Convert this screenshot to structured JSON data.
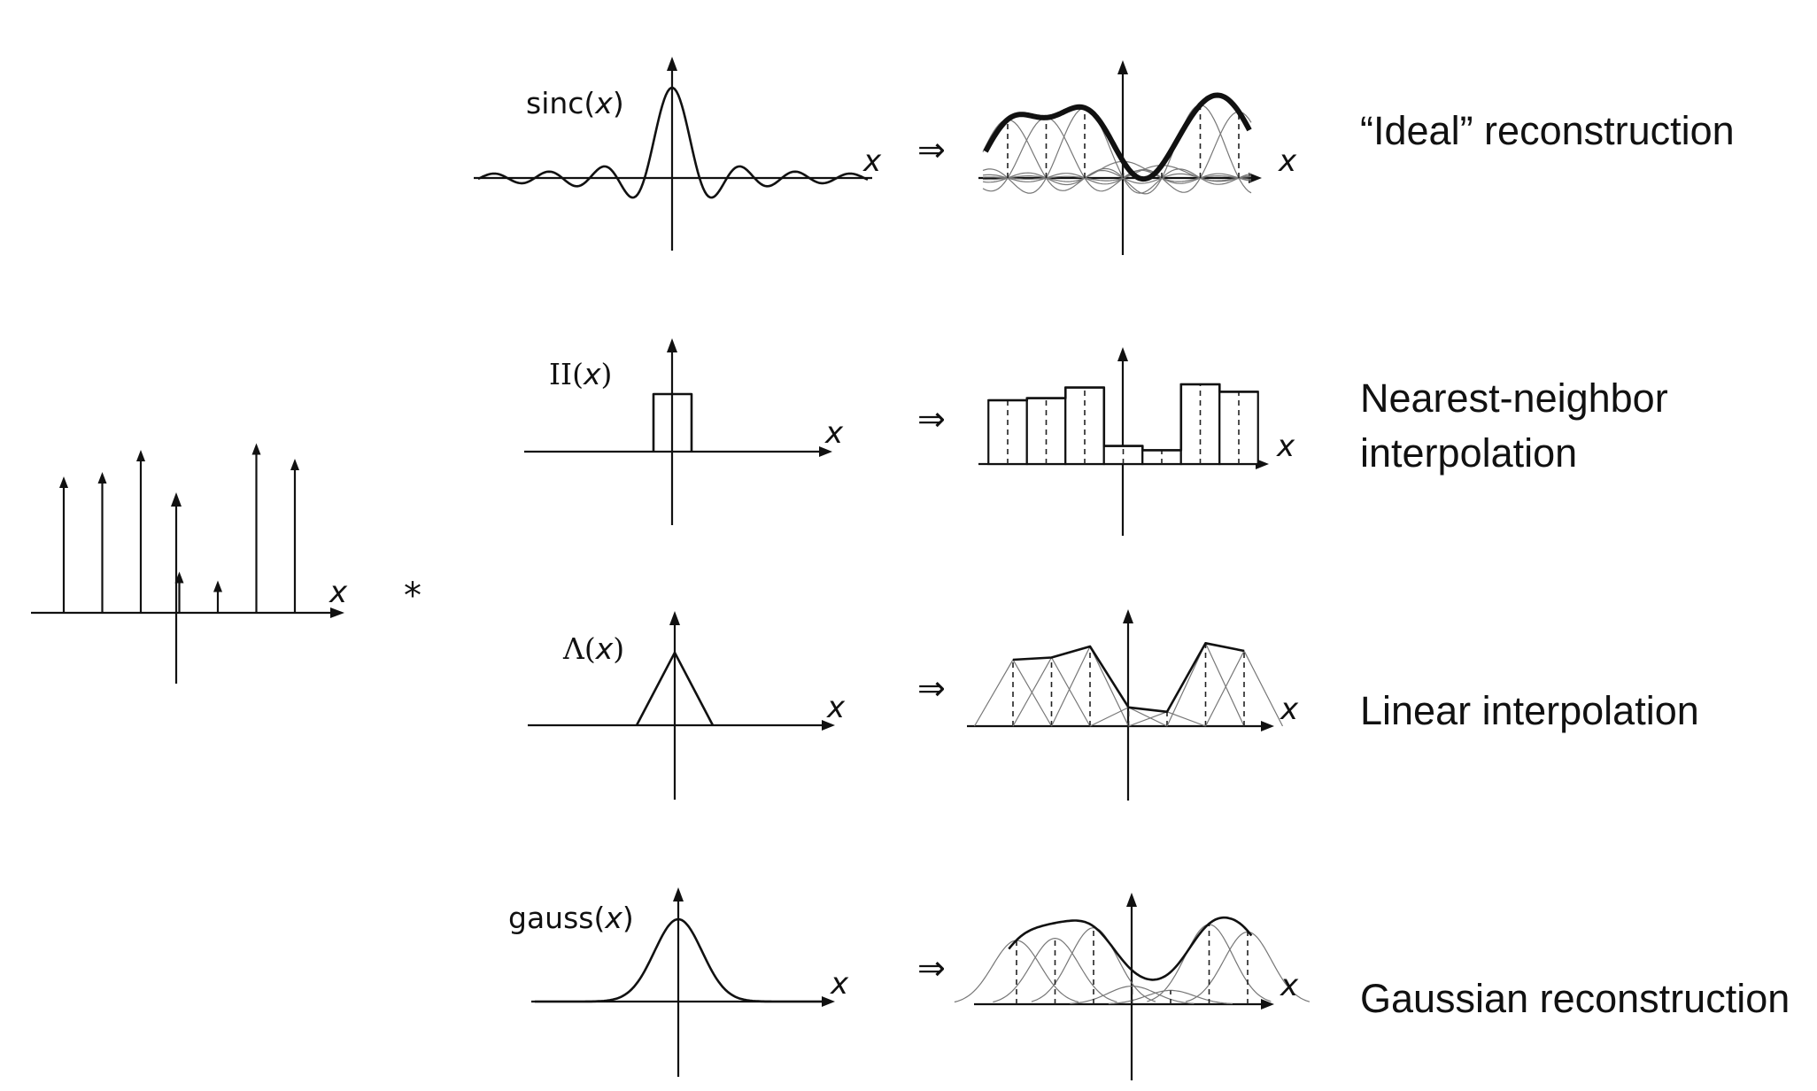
{
  "samples": {
    "axis_label": "x",
    "values": [
      0.6,
      0.62,
      0.72,
      0.17,
      0.13,
      0.75,
      0.68
    ],
    "convolve_symbol": "*"
  },
  "implies_symbol": "⇒",
  "rows": [
    {
      "kernel_type": "sinc",
      "kernel_label_text": "sinc(",
      "kernel_label_var": "x",
      "kernel_label_close": ")",
      "axis_label": "x",
      "result_axis_label": "x",
      "method_lines": [
        "“Ideal” reconstruction"
      ]
    },
    {
      "kernel_type": "box",
      "kernel_label_text": "II(",
      "kernel_label_var": "x",
      "kernel_label_close": ")",
      "axis_label": "x",
      "result_axis_label": "x",
      "method_lines": [
        "Nearest-neighbor",
        "interpolation"
      ]
    },
    {
      "kernel_type": "tent",
      "kernel_label_text": "Λ(",
      "kernel_label_var": "x",
      "kernel_label_close": ")",
      "axis_label": "x",
      "result_axis_label": "x",
      "method_lines": [
        "Linear interpolation"
      ]
    },
    {
      "kernel_type": "gauss",
      "kernel_label_text": "gauss(",
      "kernel_label_var": "x",
      "kernel_label_close": ")",
      "axis_label": "x",
      "result_axis_label": "x",
      "method_lines": [
        "Gaussian reconstruction"
      ]
    }
  ]
}
